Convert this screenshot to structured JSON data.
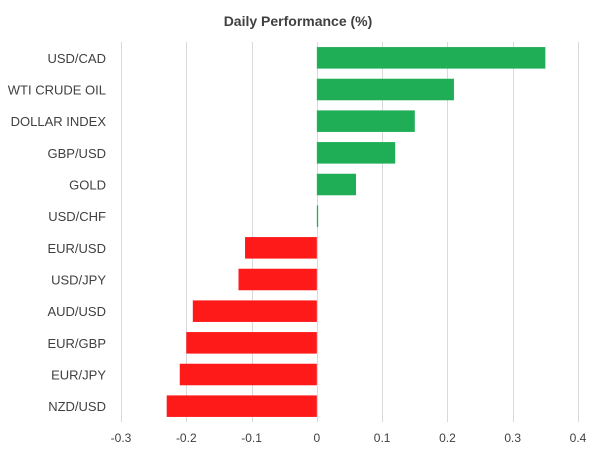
{
  "chart_data": {
    "type": "bar",
    "orientation": "horizontal",
    "title": "Daily Performance  (%)",
    "categories": [
      "USD/CAD",
      "WTI CRUDE OIL",
      "DOLLAR INDEX",
      "GBP/USD",
      "GOLD",
      "USD/CHF",
      "EUR/USD",
      "USD/JPY",
      "AUD/USD",
      "EUR/GBP",
      "EUR/JPY",
      "NZD/USD"
    ],
    "values": [
      0.35,
      0.21,
      0.15,
      0.12,
      0.06,
      0.002,
      -0.11,
      -0.12,
      -0.19,
      -0.2,
      -0.21,
      -0.23
    ],
    "xlim": [
      -0.3,
      0.4
    ],
    "xticks": [
      -0.3,
      -0.2,
      -0.1,
      0,
      0.1,
      0.2,
      0.3,
      0.4
    ],
    "xtick_labels": [
      "-0.3",
      "-0.2",
      "-0.1",
      "0",
      "0.1",
      "0.2",
      "0.3",
      "0.4"
    ],
    "colors": {
      "positive": "#1fae56",
      "negative": "#ff1a1a"
    },
    "grid": true,
    "legend": "none"
  }
}
